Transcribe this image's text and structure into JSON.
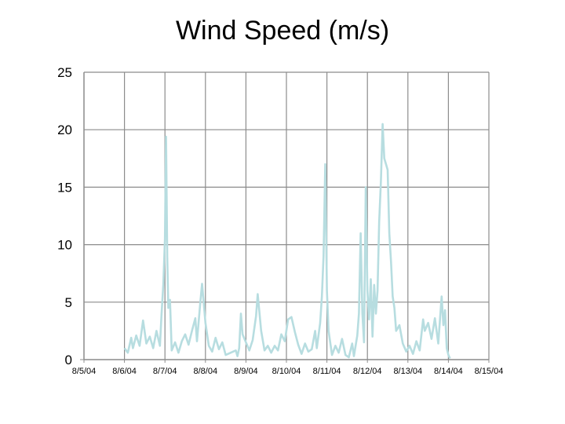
{
  "chart_data": {
    "type": "line",
    "title": "Wind Speed (m/s)",
    "xlabel": "",
    "ylabel": "",
    "x_tick_labels": [
      "8/5/04",
      "8/6/04",
      "8/7/04",
      "8/8/04",
      "8/9/04",
      "8/10/04",
      "8/11/04",
      "8/12/04",
      "8/13/04",
      "8/14/04",
      "8/15/04"
    ],
    "y_tick_labels": [
      "0",
      "5",
      "10",
      "15",
      "20",
      "25"
    ],
    "ylim": [
      0,
      25
    ],
    "grid": true,
    "line_color": "#b7dde0",
    "series": [
      {
        "values": [
          [
            "8/6/04 00:00",
            1.0
          ],
          [
            "8/6/04 02:00",
            0.6
          ],
          [
            "8/6/04 04:00",
            1.9
          ],
          [
            "8/6/04 05:00",
            1.0
          ],
          [
            "8/6/04 07:00",
            2.1
          ],
          [
            "8/6/04 09:00",
            1.2
          ],
          [
            "8/6/04 11:00",
            3.4
          ],
          [
            "8/6/04 13:00",
            1.4
          ],
          [
            "8/6/04 15:00",
            2.0
          ],
          [
            "8/6/04 17:00",
            1.0
          ],
          [
            "8/6/04 19:00",
            2.5
          ],
          [
            "8/6/04 21:00",
            1.2
          ],
          [
            "8/6/04 22:00",
            4.0
          ],
          [
            "8/6/04 23:00",
            6.5
          ],
          [
            "8/7/04 00:00",
            10.5
          ],
          [
            "8/7/04 00:40",
            19.4
          ],
          [
            "8/7/04 01:20",
            9.0
          ],
          [
            "8/7/04 02:00",
            4.5
          ],
          [
            "8/7/04 03:00",
            5.2
          ],
          [
            "8/7/04 04:00",
            0.8
          ],
          [
            "8/7/04 06:00",
            1.5
          ],
          [
            "8/7/04 08:00",
            0.6
          ],
          [
            "8/7/04 10:00",
            1.6
          ],
          [
            "8/7/04 12:00",
            2.2
          ],
          [
            "8/7/04 14:00",
            1.3
          ],
          [
            "8/7/04 16:00",
            2.5
          ],
          [
            "8/7/04 18:00",
            3.6
          ],
          [
            "8/7/04 19:00",
            1.6
          ],
          [
            "8/7/04 21:00",
            5.0
          ],
          [
            "8/7/04 22:00",
            6.6
          ],
          [
            "8/8/04 00:00",
            3.2
          ],
          [
            "8/8/04 02:00",
            1.2
          ],
          [
            "8/8/04 04:00",
            0.7
          ],
          [
            "8/8/04 06:00",
            1.9
          ],
          [
            "8/8/04 08:00",
            0.9
          ],
          [
            "8/8/04 10:00",
            1.5
          ],
          [
            "8/8/04 12:00",
            0.4
          ],
          [
            "8/8/04 15:00",
            0.6
          ],
          [
            "8/8/04 18:00",
            0.8
          ],
          [
            "8/8/04 19:00",
            0.3
          ],
          [
            "8/8/04 20:00",
            1.0
          ],
          [
            "8/8/04 21:00",
            4.0
          ],
          [
            "8/8/04 22:00",
            2.2
          ],
          [
            "8/9/04 00:00",
            1.5
          ],
          [
            "8/9/04 02:00",
            0.8
          ],
          [
            "8/9/04 04:00",
            1.7
          ],
          [
            "8/9/04 06:00",
            3.8
          ],
          [
            "8/9/04 07:00",
            5.7
          ],
          [
            "8/9/04 09:00",
            2.5
          ],
          [
            "8/9/04 11:00",
            0.8
          ],
          [
            "8/9/04 13:00",
            1.2
          ],
          [
            "8/9/04 15:00",
            0.6
          ],
          [
            "8/9/04 17:00",
            1.2
          ],
          [
            "8/9/04 19:00",
            0.8
          ],
          [
            "8/9/04 21:00",
            2.2
          ],
          [
            "8/9/04 23:00",
            1.6
          ],
          [
            "8/10/04 01:00",
            3.5
          ],
          [
            "8/10/04 03:00",
            3.7
          ],
          [
            "8/10/04 05:00",
            2.4
          ],
          [
            "8/10/04 07:00",
            1.3
          ],
          [
            "8/10/04 09:00",
            0.5
          ],
          [
            "8/10/04 11:00",
            1.4
          ],
          [
            "8/10/04 13:00",
            0.7
          ],
          [
            "8/10/04 15:00",
            0.9
          ],
          [
            "8/10/04 17:00",
            2.5
          ],
          [
            "8/10/04 18:00",
            1.0
          ],
          [
            "8/10/04 20:00",
            3.2
          ],
          [
            "8/10/04 21:00",
            5.5
          ],
          [
            "8/10/04 22:00",
            9.0
          ],
          [
            "8/10/04 23:00",
            17.0
          ],
          [
            "8/11/04 00:00",
            6.0
          ],
          [
            "8/11/04 01:00",
            2.5
          ],
          [
            "8/11/04 03:00",
            0.4
          ],
          [
            "8/11/04 05:00",
            1.2
          ],
          [
            "8/11/04 07:00",
            0.6
          ],
          [
            "8/11/04 09:00",
            1.8
          ],
          [
            "8/11/04 11:00",
            0.4
          ],
          [
            "8/11/04 13:00",
            0.2
          ],
          [
            "8/11/04 15:00",
            1.4
          ],
          [
            "8/11/04 16:00",
            0.3
          ],
          [
            "8/11/04 18:00",
            2.1
          ],
          [
            "8/11/04 19:00",
            4.0
          ],
          [
            "8/11/04 20:00",
            11.0
          ],
          [
            "8/11/04 21:00",
            4.0
          ],
          [
            "8/11/04 22:00",
            1.5
          ],
          [
            "8/11/04 23:00",
            15.0
          ],
          [
            "8/12/04 00:00",
            6.0
          ],
          [
            "8/12/04 01:00",
            3.5
          ],
          [
            "8/12/04 02:00",
            7.0
          ],
          [
            "8/12/04 03:00",
            2.0
          ],
          [
            "8/12/04 04:00",
            6.5
          ],
          [
            "8/12/04 05:00",
            4.0
          ],
          [
            "8/12/04 06:00",
            6.0
          ],
          [
            "8/12/04 07:00",
            12.0
          ],
          [
            "8/12/04 08:00",
            15.5
          ],
          [
            "8/12/04 09:00",
            20.5
          ],
          [
            "8/12/04 10:00",
            17.5
          ],
          [
            "8/12/04 11:00",
            17.0
          ],
          [
            "8/12/04 12:00",
            16.5
          ],
          [
            "8/12/04 13:00",
            11.0
          ],
          [
            "8/12/04 14:00",
            8.5
          ],
          [
            "8/12/04 15:00",
            5.5
          ],
          [
            "8/12/04 16:00",
            4.5
          ],
          [
            "8/12/04 17:00",
            2.5
          ],
          [
            "8/12/04 19:00",
            3.0
          ],
          [
            "8/12/04 21:00",
            1.4
          ],
          [
            "8/12/04 23:00",
            0.7
          ],
          [
            "8/13/04 01:00",
            1.2
          ],
          [
            "8/13/04 03:00",
            0.5
          ],
          [
            "8/13/04 05:00",
            1.6
          ],
          [
            "8/13/04 07:00",
            0.8
          ],
          [
            "8/13/04 09:00",
            3.5
          ],
          [
            "8/13/04 10:00",
            2.5
          ],
          [
            "8/13/04 12:00",
            3.2
          ],
          [
            "8/13/04 14:00",
            1.8
          ],
          [
            "8/13/04 16:00",
            3.6
          ],
          [
            "8/13/04 18:00",
            1.4
          ],
          [
            "8/13/04 20:00",
            5.5
          ],
          [
            "8/13/04 21:00",
            3.0
          ],
          [
            "8/13/04 22:00",
            4.3
          ],
          [
            "8/13/04 23:00",
            1.0
          ],
          [
            "8/14/04 00:00",
            0.4
          ],
          [
            "8/14/04 01:00",
            0.1
          ]
        ]
      }
    ]
  }
}
